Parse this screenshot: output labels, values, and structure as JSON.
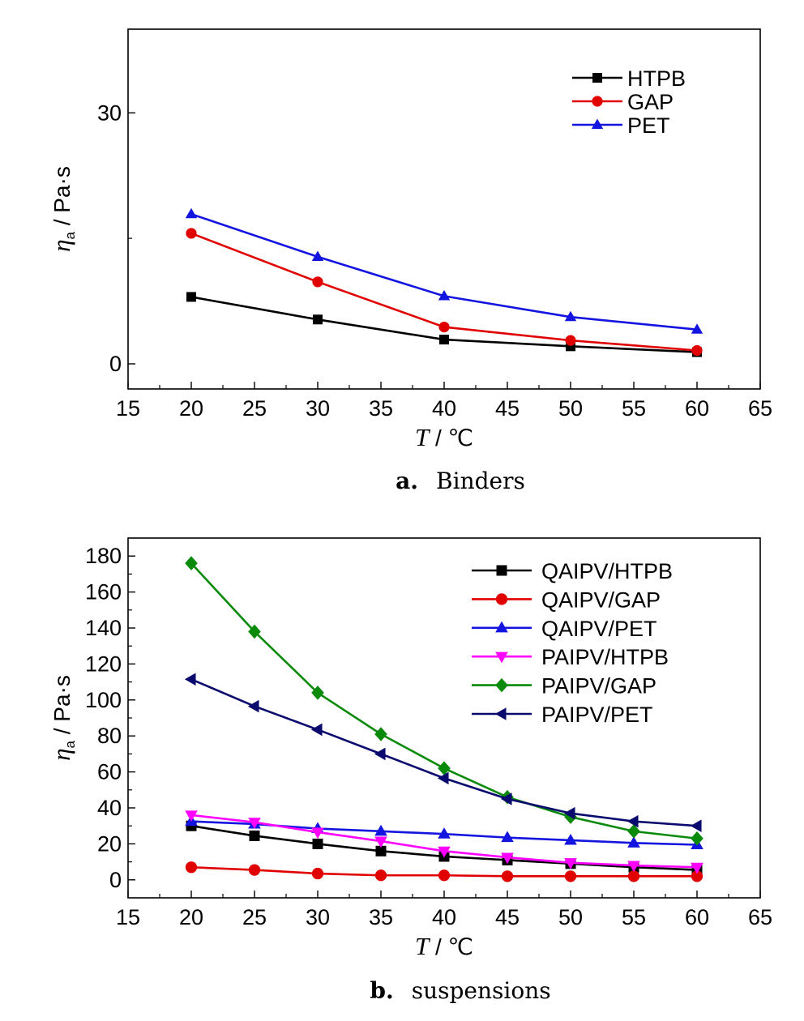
{
  "chart_data": [
    {
      "type": "line",
      "panel_label": "a.",
      "panel_caption": "Binders",
      "x": [
        20,
        30,
        40,
        50,
        60
      ],
      "xlim": [
        15,
        65
      ],
      "xticks": [
        15,
        20,
        25,
        30,
        35,
        40,
        45,
        50,
        55,
        60,
        65
      ],
      "ylim": [
        -3,
        40
      ],
      "yticks": [
        0,
        30
      ],
      "xlabel_var": "T",
      "xlabel_unit": " / ℃",
      "ylabel_var": "η",
      "ylabel_sub": "a",
      "ylabel_unit": " / Pa·s",
      "legend_position": "top-right",
      "grid": false,
      "series": [
        {
          "name": "HTPB",
          "color": "#000000",
          "marker": "square",
          "values": [
            8.0,
            5.3,
            2.9,
            2.1,
            1.4
          ]
        },
        {
          "name": "GAP",
          "color": "#e00000",
          "marker": "circle",
          "values": [
            15.6,
            9.8,
            4.4,
            2.8,
            1.6
          ]
        },
        {
          "name": "PET",
          "color": "#1414e0",
          "marker": "triangle-up",
          "values": [
            17.9,
            12.8,
            8.1,
            5.6,
            4.1
          ]
        }
      ]
    },
    {
      "type": "line",
      "panel_label": "b.",
      "panel_caption": "suspensions",
      "x": [
        20,
        25,
        30,
        35,
        40,
        45,
        50,
        55,
        60
      ],
      "xlim": [
        15,
        65
      ],
      "xticks": [
        15,
        20,
        25,
        30,
        35,
        40,
        45,
        50,
        55,
        60,
        65
      ],
      "ylim": [
        -10,
        190
      ],
      "yticks": [
        0,
        20,
        40,
        60,
        80,
        100,
        120,
        140,
        160,
        180
      ],
      "xlabel_var": "T",
      "xlabel_unit": " / ℃",
      "ylabel_var": "η",
      "ylabel_sub": "a",
      "ylabel_unit": " / Pa·s",
      "legend_position": "top-right",
      "grid": false,
      "series": [
        {
          "name": "QAIPV/HTPB",
          "color": "#000000",
          "marker": "square",
          "values": [
            30,
            24.5,
            20,
            16,
            13,
            11,
            9,
            7,
            5.5
          ]
        },
        {
          "name": "QAIPV/GAP",
          "color": "#e00000",
          "marker": "circle",
          "values": [
            7,
            5.5,
            3.5,
            2.5,
            2.5,
            2,
            2,
            2,
            2
          ]
        },
        {
          "name": "QAIPV/PET",
          "color": "#1414e0",
          "marker": "triangle-up",
          "values": [
            32.5,
            31,
            28.5,
            27,
            25.5,
            23.5,
            22,
            20.5,
            19.5
          ]
        },
        {
          "name": "PAIPV/HTPB",
          "color": "#ff00ff",
          "marker": "triangle-down",
          "values": [
            36,
            32,
            26.5,
            21.5,
            16,
            12.5,
            9.5,
            8,
            7
          ]
        },
        {
          "name": "PAIPV/GAP",
          "color": "#0a8a0a",
          "marker": "diamond",
          "values": [
            176,
            138,
            104,
            81,
            62,
            46,
            35,
            27,
            23
          ]
        },
        {
          "name": "PAIPV/PET",
          "color": "#0a0a6e",
          "marker": "triangle-left",
          "values": [
            111.5,
            96.5,
            83.5,
            70,
            56.5,
            45,
            37,
            32.5,
            30
          ]
        }
      ]
    }
  ]
}
